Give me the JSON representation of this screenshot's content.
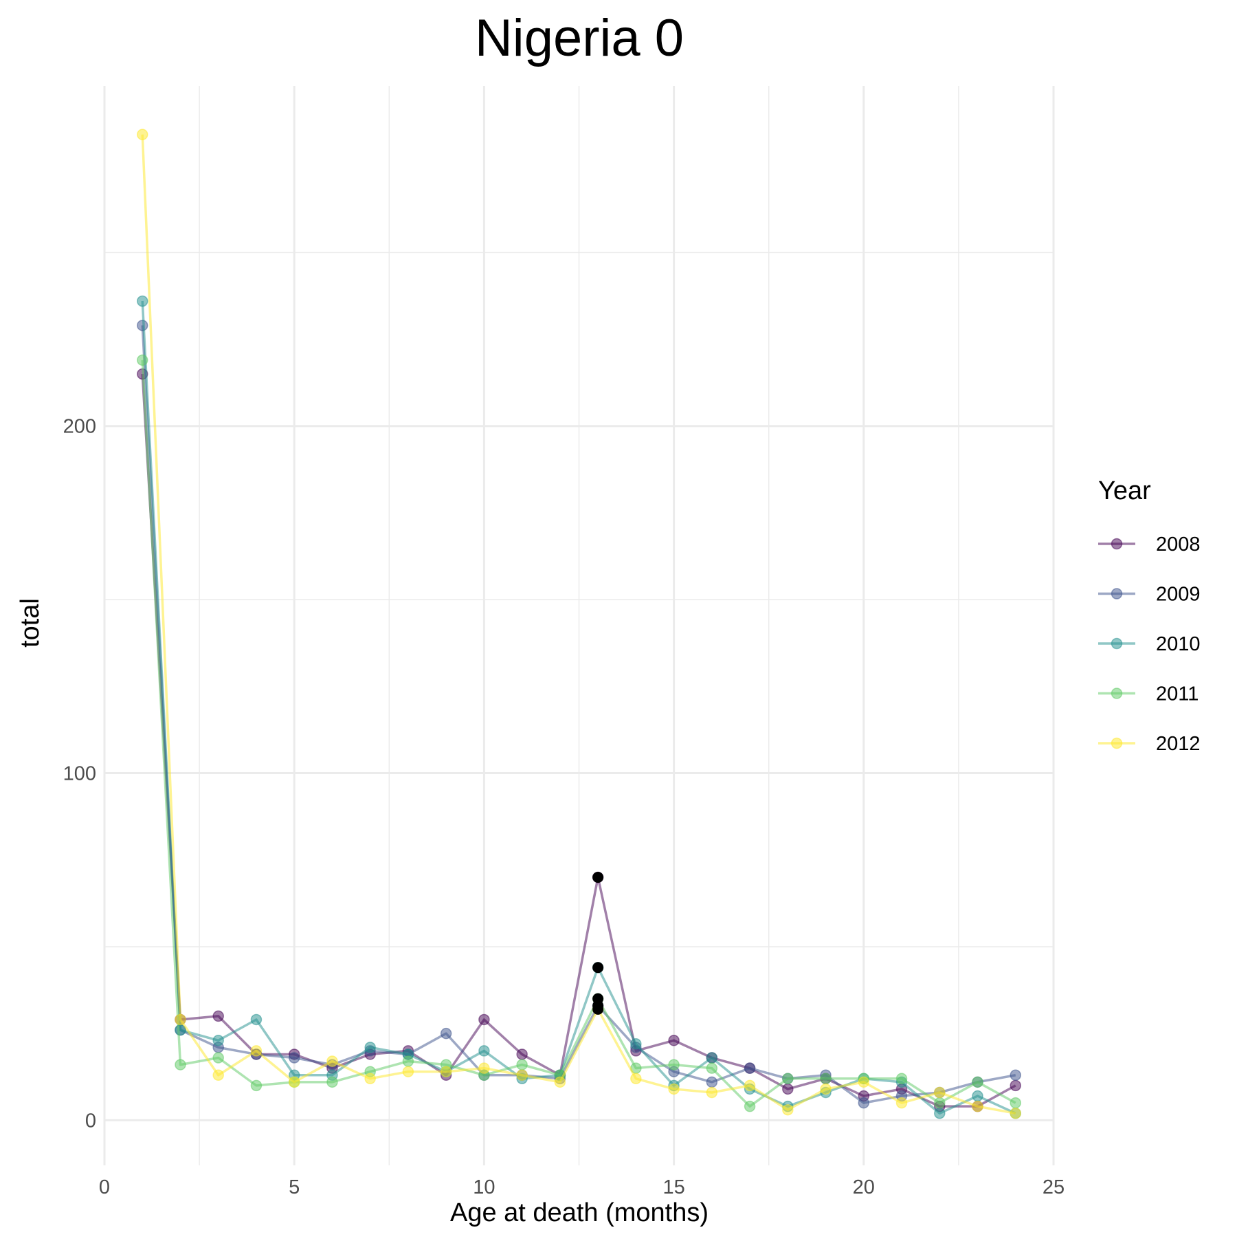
{
  "chart_data": {
    "type": "line",
    "title": "Nigeria 0",
    "xlabel": "Age at death (months)",
    "ylabel": "total",
    "xlim": [
      0,
      25
    ],
    "ylim": [
      -13,
      298
    ],
    "x_ticks": [
      0,
      5,
      10,
      15,
      20,
      25
    ],
    "y_ticks": [
      0,
      100,
      200
    ],
    "x_minor_ticks": [
      2.5,
      7.5,
      12.5,
      17.5,
      22.5
    ],
    "y_minor_ticks": [
      50,
      150,
      250
    ],
    "grid": true,
    "legend": {
      "title": "Year",
      "position": "right"
    },
    "x": [
      1,
      2,
      3,
      4,
      5,
      6,
      7,
      8,
      9,
      10,
      11,
      12,
      13,
      14,
      15,
      16,
      17,
      18,
      19,
      20,
      21,
      22,
      23,
      24
    ],
    "series": [
      {
        "name": "2008",
        "color": "#440154",
        "values": [
          215,
          29,
          30,
          19,
          19,
          15,
          19,
          20,
          13,
          29,
          19,
          13,
          70,
          20,
          23,
          18,
          15,
          9,
          12,
          7,
          9,
          4,
          4,
          10
        ]
      },
      {
        "name": "2009",
        "color": "#3b528b",
        "values": [
          229,
          26,
          21,
          19,
          18,
          16,
          20,
          19,
          25,
          13,
          13,
          12,
          33,
          21,
          14,
          11,
          15,
          12,
          13,
          5,
          7,
          8,
          11,
          13
        ]
      },
      {
        "name": "2010",
        "color": "#21908d",
        "values": [
          236,
          26,
          23,
          29,
          13,
          13,
          21,
          19,
          14,
          20,
          12,
          13,
          44,
          22,
          10,
          18,
          9,
          4,
          8,
          12,
          11,
          2,
          7,
          2
        ]
      },
      {
        "name": "2011",
        "color": "#5dc963",
        "values": [
          219,
          16,
          18,
          10,
          11,
          11,
          14,
          17,
          16,
          13,
          16,
          13,
          35,
          15,
          16,
          15,
          4,
          12,
          12,
          12,
          12,
          5,
          11,
          5
        ]
      },
      {
        "name": "2012",
        "color": "#fde725",
        "values": [
          284,
          29,
          13,
          20,
          11,
          17,
          12,
          14,
          14,
          15,
          13,
          11,
          32,
          12,
          9,
          8,
          10,
          3,
          9,
          11,
          5,
          8,
          4,
          2
        ]
      }
    ],
    "highlighted_points": [
      {
        "x": 13,
        "y": 70,
        "color": "#000000"
      },
      {
        "x": 13,
        "y": 44,
        "color": "#000000"
      },
      {
        "x": 13,
        "y": 35,
        "color": "#000000"
      },
      {
        "x": 13,
        "y": 33,
        "color": "#000000"
      },
      {
        "x": 13,
        "y": 32,
        "color": "#000000"
      }
    ]
  }
}
